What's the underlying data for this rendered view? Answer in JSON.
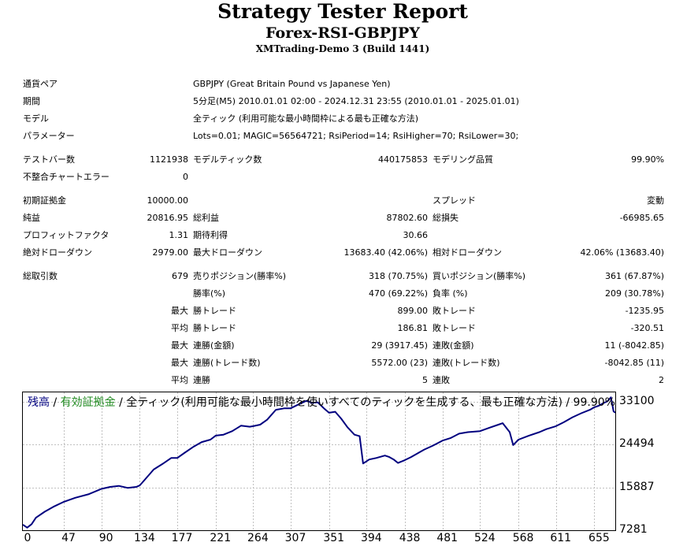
{
  "header": {
    "title": "Strategy Tester Report",
    "subtitle": "Forex-RSI-GBPJPY",
    "server": "XMTrading-Demo 3 (Build 1441)"
  },
  "info": [
    {
      "label": "通貨ペア",
      "value": "GBPJPY (Great Britain Pound vs Japanese Yen)"
    },
    {
      "label": "期間",
      "value": "5分足(M5) 2010.01.01 02:00 - 2024.12.31 23:55 (2010.01.01 - 2025.01.01)"
    },
    {
      "label": "モデル",
      "value": "全ティック (利用可能な最小時間枠による最も正確な方法)"
    },
    {
      "label": "パラメーター",
      "value": "Lots=0.01; MAGIC=56564721; RsiPeriod=14; RsiHigher=70; RsiLower=30;"
    }
  ],
  "stats": {
    "bars": {
      "label": "テストバー数",
      "value": "1121938"
    },
    "ticks": {
      "label": "モデルティック数",
      "value": "440175853"
    },
    "quality": {
      "label": "モデリング品質",
      "value": "99.90%"
    },
    "mismatch": {
      "label": "不整合チャートエラー",
      "value": "0"
    },
    "deposit": {
      "label": "初期証拠金",
      "value": "10000.00"
    },
    "spread": {
      "label": "スプレッド",
      "value": "変動"
    },
    "net_profit": {
      "label": "純益",
      "value": "20816.95"
    },
    "gross_profit": {
      "label": "総利益",
      "value": "87802.60"
    },
    "gross_loss": {
      "label": "総損失",
      "value": "-66985.65"
    },
    "profit_factor": {
      "label": "プロフィットファクタ",
      "value": "1.31"
    },
    "expected_payoff": {
      "label": "期待利得",
      "value": "30.66"
    },
    "abs_dd": {
      "label": "絶対ドローダウン",
      "value": "2979.00"
    },
    "max_dd": {
      "label": "最大ドローダウン",
      "value": "13683.40 (42.06%)"
    },
    "rel_dd": {
      "label": "相対ドローダウン",
      "value": "42.06% (13683.40)"
    },
    "total_trades": {
      "label": "総取引数",
      "value": "679"
    },
    "short_pos": {
      "label": "売りポジション(勝率%)",
      "value": "318 (70.75%)"
    },
    "long_pos": {
      "label": "買いポジション(勝率%)",
      "value": "361 (67.87%)"
    },
    "win_rate": {
      "label": "勝率(%)",
      "value": "470 (69.22%)"
    },
    "loss_rate": {
      "label": "負率 (%)",
      "value": "209 (30.78%)"
    },
    "max_label": "最大",
    "avg_label": "平均",
    "largest_win": {
      "label": "勝トレード",
      "value": "899.00"
    },
    "largest_loss": {
      "label": "敗トレード",
      "value": "-1235.95"
    },
    "average_win": {
      "label": "勝トレード",
      "value": "186.81"
    },
    "average_loss": {
      "label": "敗トレード",
      "value": "-320.51"
    },
    "max_consec_wins": {
      "label": "連勝(金額)",
      "value": "29 (3917.45)"
    },
    "max_consec_losses": {
      "label": "連敗(金額)",
      "value": "11 (-8042.85)"
    },
    "max_consec_profit": {
      "label": "連勝(トレード数)",
      "value": "5572.00 (23)"
    },
    "max_consec_loss": {
      "label": "連敗(トレード数)",
      "value": "-8042.85 (11)"
    },
    "avg_consec_wins": {
      "label": "連勝",
      "value": "5"
    },
    "avg_consec_losses": {
      "label": "連敗",
      "value": "2"
    }
  },
  "chart_data": {
    "type": "line",
    "legend_balance": "残高",
    "legend_sep": " / ",
    "legend_equity": "有効証拠金",
    "legend_rest": " / 全ティック(利用可能な最小時間枠を使いすべてのティックを生成する、最も正確な方法) / 99.90%",
    "colors": {
      "balance": "#00007f",
      "equity": "#228b22",
      "grid": "#c0c0c0"
    },
    "grid": true,
    "xlim": [
      0,
      679
    ],
    "ylim": [
      7281,
      35000
    ],
    "y_ticks": [
      33100,
      24494,
      15887,
      7281
    ],
    "x_ticks": [
      0,
      47,
      90,
      134,
      177,
      221,
      264,
      307,
      351,
      394,
      438,
      481,
      524,
      568,
      611,
      655
    ],
    "series": [
      {
        "name": "残高",
        "points": [
          [
            0,
            8400
          ],
          [
            5,
            7800
          ],
          [
            10,
            8500
          ],
          [
            15,
            9800
          ],
          [
            25,
            11000
          ],
          [
            35,
            12000
          ],
          [
            47,
            13000
          ],
          [
            60,
            13800
          ],
          [
            75,
            14500
          ],
          [
            90,
            15600
          ],
          [
            100,
            16000
          ],
          [
            110,
            16200
          ],
          [
            120,
            15800
          ],
          [
            130,
            16000
          ],
          [
            134,
            16300
          ],
          [
            140,
            17500
          ],
          [
            150,
            19500
          ],
          [
            160,
            20600
          ],
          [
            170,
            21800
          ],
          [
            177,
            21800
          ],
          [
            185,
            22800
          ],
          [
            195,
            24000
          ],
          [
            205,
            25000
          ],
          [
            215,
            25500
          ],
          [
            221,
            26300
          ],
          [
            230,
            26500
          ],
          [
            240,
            27200
          ],
          [
            250,
            28300
          ],
          [
            260,
            28100
          ],
          [
            264,
            28200
          ],
          [
            272,
            28500
          ],
          [
            280,
            29500
          ],
          [
            290,
            31500
          ],
          [
            300,
            31800
          ],
          [
            307,
            31800
          ],
          [
            315,
            32500
          ],
          [
            325,
            33300
          ],
          [
            332,
            32900
          ],
          [
            338,
            33000
          ],
          [
            345,
            31800
          ],
          [
            351,
            30900
          ],
          [
            358,
            31100
          ],
          [
            365,
            29700
          ],
          [
            372,
            28000
          ],
          [
            380,
            26500
          ],
          [
            386,
            26200
          ],
          [
            390,
            20700
          ],
          [
            397,
            21500
          ],
          [
            405,
            21800
          ],
          [
            415,
            22300
          ],
          [
            420,
            22000
          ],
          [
            425,
            21500
          ],
          [
            430,
            20800
          ],
          [
            438,
            21400
          ],
          [
            445,
            22000
          ],
          [
            460,
            23500
          ],
          [
            470,
            24300
          ],
          [
            481,
            25300
          ],
          [
            490,
            25800
          ],
          [
            500,
            26700
          ],
          [
            510,
            27000
          ],
          [
            524,
            27200
          ],
          [
            535,
            27900
          ],
          [
            545,
            28500
          ],
          [
            550,
            28800
          ],
          [
            558,
            27000
          ],
          [
            562,
            24400
          ],
          [
            568,
            25500
          ],
          [
            580,
            26300
          ],
          [
            592,
            27000
          ],
          [
            600,
            27600
          ],
          [
            611,
            28200
          ],
          [
            620,
            29000
          ],
          [
            630,
            30000
          ],
          [
            640,
            30800
          ],
          [
            650,
            31500
          ],
          [
            655,
            32000
          ],
          [
            660,
            32300
          ],
          [
            665,
            32800
          ],
          [
            670,
            33200
          ],
          [
            674,
            34000
          ],
          [
            677,
            31200
          ],
          [
            679,
            30900
          ]
        ]
      }
    ]
  }
}
